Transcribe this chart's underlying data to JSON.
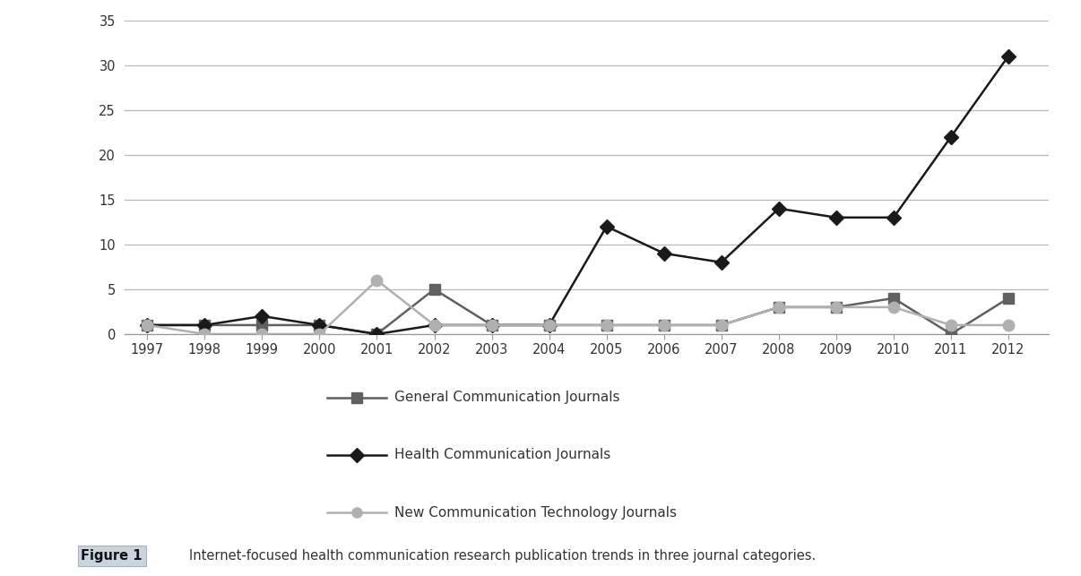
{
  "years": [
    1997,
    1998,
    1999,
    2000,
    2001,
    2002,
    2003,
    2004,
    2005,
    2006,
    2007,
    2008,
    2009,
    2010,
    2011,
    2012
  ],
  "general_comm": [
    1,
    1,
    1,
    1,
    0,
    5,
    1,
    1,
    1,
    1,
    1,
    3,
    3,
    4,
    0,
    4
  ],
  "health_comm": [
    1,
    1,
    2,
    1,
    0,
    1,
    1,
    1,
    12,
    9,
    8,
    14,
    13,
    13,
    22,
    31
  ],
  "new_comm_tech": [
    1,
    0,
    0,
    0,
    6,
    1,
    1,
    1,
    1,
    1,
    1,
    3,
    3,
    3,
    1,
    1
  ],
  "general_color": "#606060",
  "health_color": "#1a1a1a",
  "new_tech_color": "#b0b0b0",
  "ylim": [
    0,
    35
  ],
  "yticks": [
    0,
    5,
    10,
    15,
    20,
    25,
    30,
    35
  ],
  "legend_labels": [
    "General Communication Journals",
    "Health Communication Journals",
    "New Communication Technology Journals"
  ],
  "figure_caption_bold": "Figure 1",
  "figure_caption_text": "Internet-focused health communication research publication trends in three journal categories.",
  "bg_color": "#ffffff",
  "border_color": "#7fa8c8",
  "grid_color": "#b8b8b8",
  "axis_area": [
    0.115,
    0.42,
    0.855,
    0.545
  ]
}
